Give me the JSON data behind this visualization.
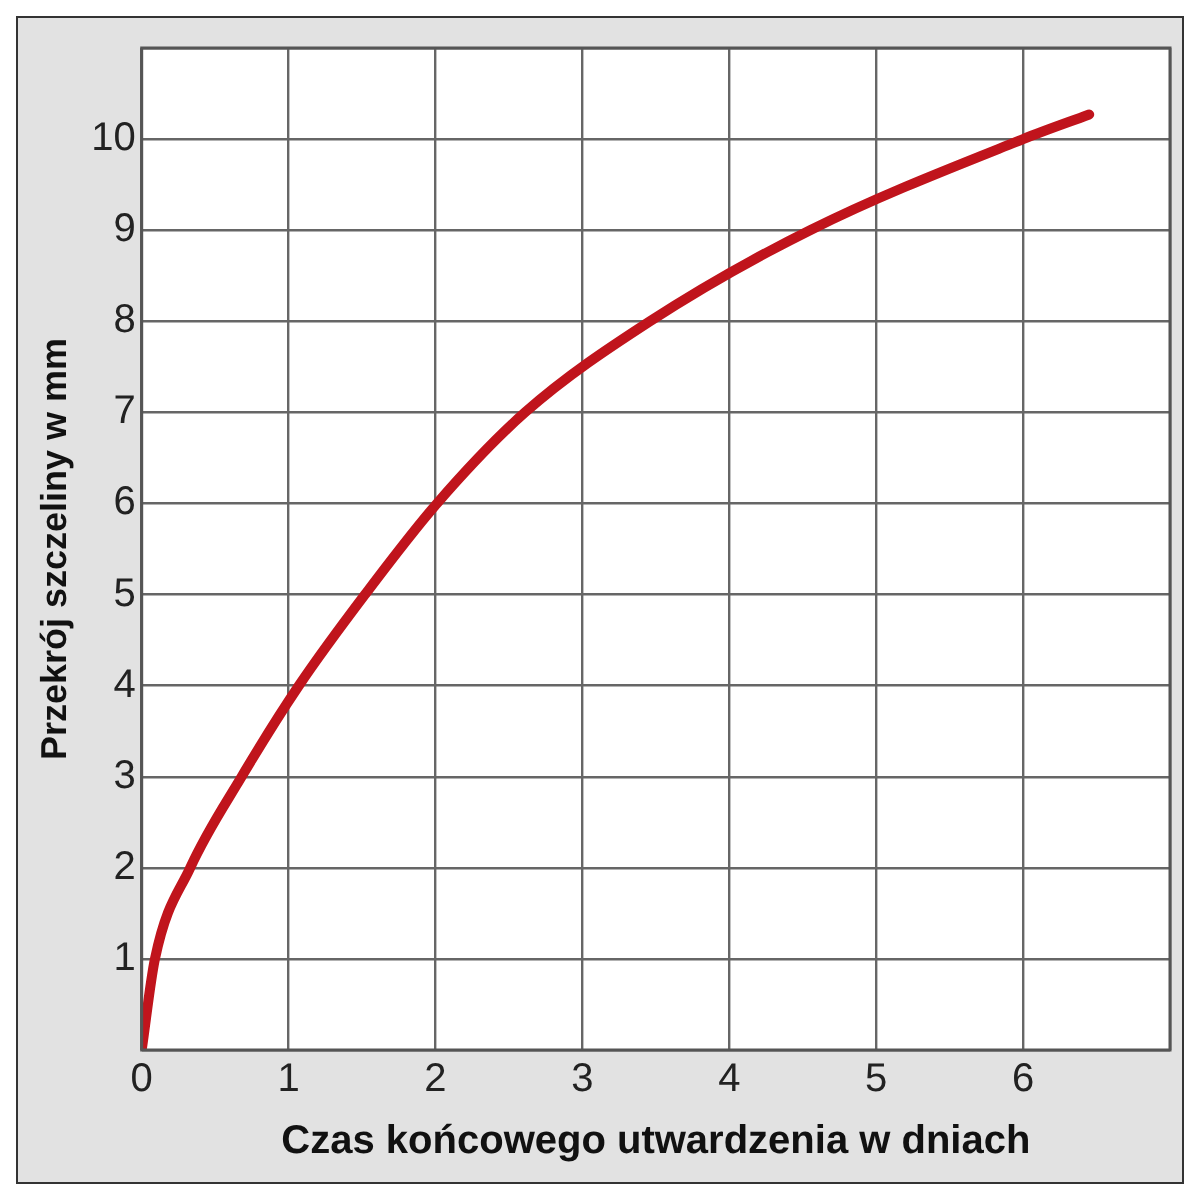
{
  "chart_data": {
    "type": "line",
    "xlabel": "Czas końcowego utwardzenia w dniach",
    "ylabel": "Przekrój szczeliny w mm",
    "x": [
      0,
      0.09,
      0.33,
      0.68,
      1.07,
      1.52,
      2.01,
      2.61,
      3.46,
      4.55,
      6.0,
      6.45
    ],
    "series": [
      {
        "color": "#c0141c",
        "values": [
          0,
          1,
          2,
          3,
          4,
          5,
          6,
          7,
          8,
          9,
          10,
          10.27
        ]
      }
    ],
    "xlim": [
      0,
      7
    ],
    "xticks": [
      0,
      1,
      2,
      3,
      4,
      5,
      6,
      {
        "value": 7,
        "label": null
      }
    ],
    "ylim": [
      0,
      11
    ],
    "yticks": [
      {
        "value": 0,
        "label": null
      },
      1,
      2,
      3,
      4,
      5,
      6,
      7,
      8,
      9,
      10,
      {
        "value": 11,
        "label": null
      }
    ],
    "grid": true,
    "legend": false,
    "marker": "none",
    "line_style": "solid"
  }
}
